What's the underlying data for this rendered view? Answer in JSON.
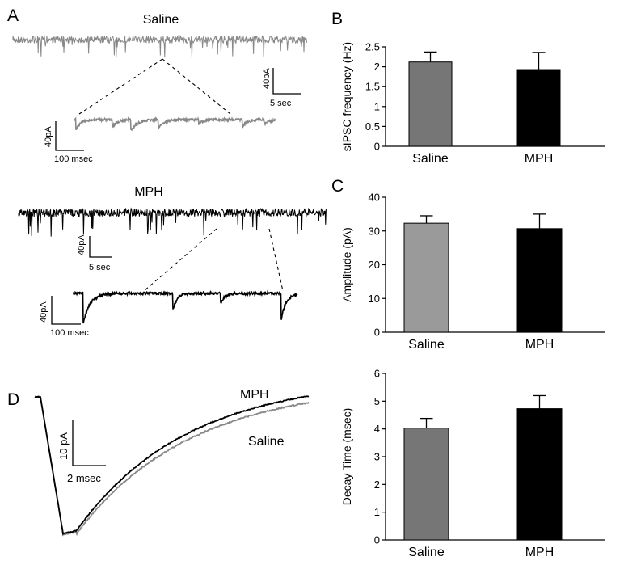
{
  "panels": {
    "a": {
      "letter": "A",
      "saline_label": "Saline",
      "mph_label": "MPH",
      "saline_scale": {
        "y": "40pA",
        "x": "5 sec"
      },
      "saline_zoom_scale": {
        "y": "40pA",
        "x": "100 msec"
      },
      "mph_scale": {
        "y": "40pA",
        "x": "5 sec"
      },
      "mph_zoom_scale": {
        "y": "40pA",
        "x": "100 msec"
      }
    },
    "d": {
      "letter": "D",
      "mph_label": "MPH",
      "saline_label": "Saline",
      "scale": {
        "y": "10 pA",
        "x": "2 msec"
      }
    }
  },
  "colors": {
    "saline_bar_b": "#767676",
    "saline_bar_c": "#9a9a9a",
    "saline_bar_decay": "#767676",
    "mph_bar": "#000000",
    "saline_trace": "#888888",
    "mph_trace": "#000000",
    "axis": "#000000"
  },
  "chart_data": [
    {
      "letter": "B",
      "type": "bar",
      "categories": [
        "Saline",
        "MPH"
      ],
      "values": [
        2.12,
        1.93
      ],
      "errors": [
        0.25,
        0.43
      ],
      "ylabel": "sIPSC frequency (Hz)",
      "ylim": [
        0,
        2.5
      ],
      "yticks": [
        "0",
        "0.5",
        "1",
        "1.5",
        "2",
        "2.5"
      ],
      "grid": false
    },
    {
      "letter": "C",
      "type": "bar",
      "categories": [
        "Saline",
        "MPH"
      ],
      "values": [
        32.3,
        30.7
      ],
      "errors": [
        2.2,
        4.3
      ],
      "ylabel": "Amplitude (pA)",
      "ylim": [
        0,
        40
      ],
      "yticks": [
        "0",
        "10",
        "20",
        "30",
        "40"
      ],
      "grid": false
    },
    {
      "letter": "",
      "type": "bar",
      "categories": [
        "Saline",
        "MPH"
      ],
      "values": [
        4.03,
        4.73
      ],
      "errors": [
        0.35,
        0.47
      ],
      "ylabel": "Decay Time (msec)",
      "ylim": [
        0,
        6
      ],
      "yticks": [
        "0",
        "1",
        "2",
        "3",
        "4",
        "5",
        "6"
      ],
      "grid": false
    }
  ]
}
